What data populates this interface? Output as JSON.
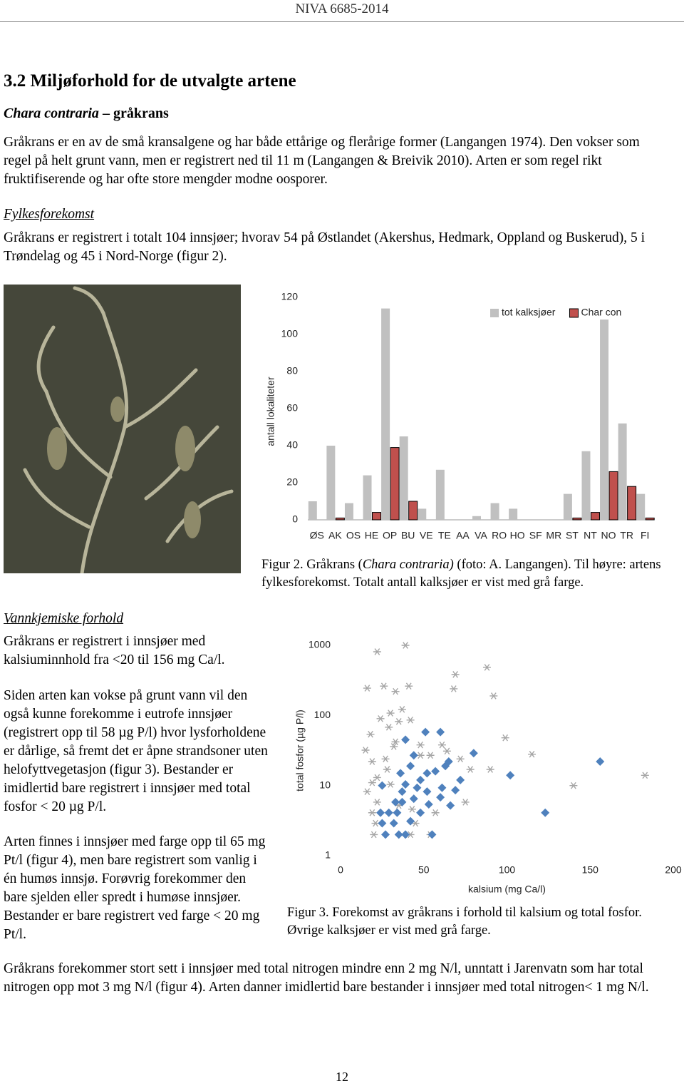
{
  "header": {
    "report": "NIVA 6685-2014"
  },
  "heading": "3.2 Miljøforhold for de utvalgte artene",
  "species": {
    "latin": "Chara contraria",
    "common": " – gråkrans"
  },
  "intro": "Gråkrans er en av de små kransalgene og har både ettårige og flerårige former (Langangen 1974). Den vokser som regel på helt grunt vann, men er registrert ned til 11 m (Langangen & Breivik 2010). Arten er som regel rikt fruktifiserende og har ofte store mengder modne oosporer.",
  "county": {
    "title": "Fylkesforekomst",
    "text": "Gråkrans er registrert i totalt 104 innsjøer; hvorav 54 på Østlandet (Akershus, Hedmark, Oppland og Buskerud), 5 i Trøndelag og 45 i Nord-Norge (figur 2)."
  },
  "figure2_caption": {
    "before": "Figur 2. Gråkrans (",
    "italic": "Chara contraria)",
    "after": " (foto: A. Langangen). Til høyre: artens fylkesforekomst. Totalt antall kalksjøer er vist med grå farge."
  },
  "water": {
    "title": "Vannkjemiske forhold",
    "paragraphs": [
      "Gråkrans er registrert i innsjøer med kalsiuminnhold fra <20 til 156 mg Ca/l.",
      "Siden arten kan vokse på grunt vann vil den også kunne forekomme i eutrofe innsjøer (registrert opp til 58 µg P/l) hvor lysforholdene er dårlige, så fremt det er åpne strandsoner uten helofyttvegetasjon (figur 3). Bestander er imidlertid bare registrert i innsjøer med total fosfor < 20 µg P/l.",
      "Arten finnes i innsjøer med farge opp til 65 mg Pt/l (figur 4), men bare registrert som vanlig i én humøs innsjø. Forøvrig forekommer den bare sjelden eller spredt i humøse innsjøer. Bestander er bare registrert ved farge < 20 mg Pt/l."
    ]
  },
  "figure3_caption": "Figur 3. Forekomst av gråkrans i forhold til kalsium og total fosfor. Øvrige kalksjøer er vist med grå farge.",
  "nitrogen": "Gråkrans forekommer stort sett i innsjøer med total nitrogen mindre enn 2 mg N/l, unntatt i Jarenvatn som har total nitrogen opp mot 3 mg N/l (figur 4). Arten danner imidlertid bare bestander i innsjøer med total nitrogen< 1 mg N/l.",
  "page_number": "12",
  "chart_data": [
    {
      "type": "bar",
      "y_label": "antall lokaliteter",
      "categories": [
        "ØS",
        "AK",
        "OS",
        "HE",
        "OP",
        "BU",
        "VE",
        "TE",
        "AA",
        "VA",
        "RO",
        "HO",
        "SF",
        "MR",
        "ST",
        "NT",
        "NO",
        "TR",
        "FI"
      ],
      "series": [
        {
          "name": "tot kalksjøer",
          "color": "#c0c0c0",
          "values": [
            10,
            40,
            9,
            24,
            114,
            45,
            6,
            27,
            0,
            2,
            9,
            6,
            0,
            0,
            14,
            37,
            108,
            52,
            14
          ]
        },
        {
          "name": "Char con",
          "color": "#c0504d",
          "values": [
            0,
            1,
            0,
            4,
            39,
            10,
            0,
            0,
            0,
            0,
            0,
            0,
            0,
            0,
            1,
            4,
            26,
            18,
            1
          ]
        }
      ],
      "ylim": [
        0,
        120
      ],
      "yticks": [
        0,
        20,
        40,
        60,
        80,
        100,
        120
      ],
      "legend": "top-right"
    },
    {
      "type": "scatter",
      "x_label": "kalsium (mg Ca/l)",
      "y_label": "total fosfor (µg P/l)",
      "xlim": [
        0,
        200
      ],
      "xticks": [
        0,
        50,
        100,
        150,
        200
      ],
      "ylim": [
        1,
        1000
      ],
      "yticks": [
        1,
        10,
        100,
        1000
      ],
      "y_log": true,
      "series": [
        {
          "color": "#a6a6a6",
          "marker": "asterisk",
          "x": [
            22,
            39,
            16,
            26,
            33,
            41,
            69,
            68,
            88,
            92,
            99,
            115,
            90,
            140,
            183,
            64,
            30,
            18,
            15,
            16,
            19,
            20,
            21,
            19,
            29,
            35,
            42,
            48,
            54,
            61,
            72,
            78,
            75,
            27,
            32,
            22,
            30,
            35,
            43,
            22,
            33,
            28,
            19,
            24,
            37,
            48,
            57,
            54,
            42,
            45
          ],
          "y": [
            810,
            1000,
            245,
            262,
            220,
            262,
            384,
            240,
            485,
            190,
            48,
            28,
            17,
            10,
            14,
            31,
            108,
            54,
            32,
            8.2,
            4.1,
            2,
            2.9,
            22,
            68,
            82,
            86,
            38,
            27,
            38,
            24,
            17,
            5.8,
            24,
            36,
            13,
            10.4,
            5.2,
            4.6,
            5.8,
            42,
            17,
            11,
            90,
            122,
            27,
            4.1,
            2,
            2,
            2.9
          ]
        },
        {
          "color": "#4f81bd",
          "marker": "diamond",
          "x": [
            39,
            60,
            51,
            80,
            156,
            102,
            123,
            55,
            25,
            24,
            27,
            35,
            39,
            25,
            32,
            42,
            44,
            42,
            36,
            48,
            52,
            57,
            63,
            69,
            66,
            72,
            61,
            52,
            53,
            37,
            39,
            44,
            33,
            29,
            34,
            48,
            60,
            65,
            46,
            37
          ],
          "y": [
            45,
            58,
            58,
            29,
            22,
            14,
            4.1,
            2,
            10,
            4.1,
            2,
            2,
            2,
            2.9,
            2.9,
            3.1,
            27,
            19,
            15,
            12,
            15,
            16,
            19,
            8.6,
            5.2,
            12,
            9.3,
            8.2,
            5.4,
            8.2,
            10.4,
            6.5,
            5.8,
            4.1,
            4.1,
            4.1,
            6.8,
            22,
            9.3,
            5.8
          ]
        }
      ]
    }
  ]
}
